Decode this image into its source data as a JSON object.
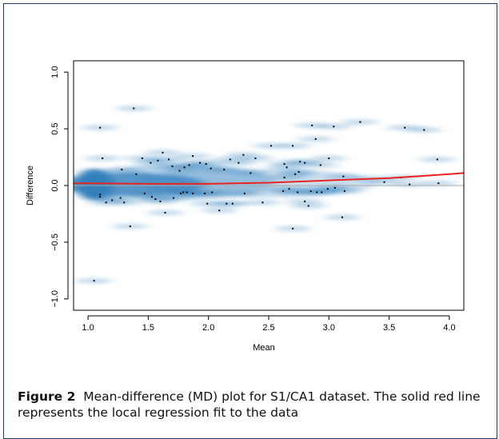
{
  "chart_data": {
    "type": "scatter",
    "title": "",
    "xlabel": "Mean",
    "ylabel": "Difference",
    "xlim": [
      0.88,
      4.12
    ],
    "ylim": [
      -1.1,
      1.1
    ],
    "x_ticks": [
      "1.0",
      "1.5",
      "2.0",
      "2.5",
      "3.0",
      "3.5",
      "4.0"
    ],
    "y_ticks": [
      "-1.0",
      "-0.5",
      "0.0",
      "0.5",
      "1.0"
    ],
    "smooth_scatter_density": true,
    "reference_line_y": 0.0,
    "points": [
      [
        1.1,
        0.51
      ],
      [
        1.38,
        0.68
      ],
      [
        1.05,
        -0.84
      ],
      [
        1.12,
        0.24
      ],
      [
        1.28,
        0.14
      ],
      [
        1.35,
        -0.36
      ],
      [
        1.4,
        0.1
      ],
      [
        1.45,
        0.24
      ],
      [
        1.52,
        0.2
      ],
      [
        1.58,
        0.22
      ],
      [
        1.62,
        0.29
      ],
      [
        1.67,
        0.23
      ],
      [
        1.7,
        0.17
      ],
      [
        1.76,
        0.13
      ],
      [
        1.8,
        0.16
      ],
      [
        1.84,
        0.18
      ],
      [
        1.87,
        0.26
      ],
      [
        1.93,
        0.2
      ],
      [
        1.98,
        0.19
      ],
      [
        2.02,
        0.15
      ],
      [
        2.13,
        0.14
      ],
      [
        2.18,
        0.23
      ],
      [
        2.25,
        0.2
      ],
      [
        2.29,
        0.27
      ],
      [
        2.35,
        0.11
      ],
      [
        2.39,
        0.24
      ],
      [
        2.52,
        0.35
      ],
      [
        2.63,
        0.07
      ],
      [
        2.7,
        0.35
      ],
      [
        2.76,
        0.21
      ],
      [
        2.8,
        0.2
      ],
      [
        2.86,
        0.53
      ],
      [
        2.89,
        0.41
      ],
      [
        2.93,
        0.18
      ],
      [
        3.04,
        0.52
      ],
      [
        3.26,
        0.56
      ],
      [
        3.63,
        0.51
      ],
      [
        3.79,
        0.49
      ],
      [
        3.9,
        0.23
      ],
      [
        3.0,
        0.24
      ],
      [
        2.63,
        0.19
      ],
      [
        2.65,
        0.16
      ],
      [
        2.75,
        0.12
      ],
      [
        2.72,
        0.1
      ],
      [
        3.12,
        0.08
      ],
      [
        3.35,
        0.06
      ],
      [
        3.46,
        0.03
      ],
      [
        3.6,
        0.07
      ],
      [
        3.67,
        0.01
      ],
      [
        1.1,
        -0.08
      ],
      [
        1.1,
        -0.1
      ],
      [
        1.15,
        -0.15
      ],
      [
        1.2,
        -0.13
      ],
      [
        1.27,
        -0.11
      ],
      [
        1.3,
        -0.15
      ],
      [
        1.47,
        -0.07
      ],
      [
        1.53,
        -0.1
      ],
      [
        1.56,
        -0.12
      ],
      [
        1.6,
        -0.14
      ],
      [
        1.64,
        -0.24
      ],
      [
        1.71,
        -0.11
      ],
      [
        1.77,
        -0.07
      ],
      [
        1.79,
        -0.06
      ],
      [
        1.82,
        -0.06
      ],
      [
        1.87,
        -0.07
      ],
      [
        1.97,
        -0.07
      ],
      [
        1.99,
        -0.16
      ],
      [
        2.03,
        -0.06
      ],
      [
        2.09,
        -0.22
      ],
      [
        2.15,
        -0.16
      ],
      [
        2.2,
        -0.16
      ],
      [
        2.3,
        -0.07
      ],
      [
        2.45,
        -0.15
      ],
      [
        2.62,
        -0.05
      ],
      [
        2.67,
        -0.03
      ],
      [
        2.7,
        -0.38
      ],
      [
        2.74,
        -0.06
      ],
      [
        2.8,
        -0.14
      ],
      [
        2.83,
        -0.18
      ],
      [
        2.85,
        -0.05
      ],
      [
        2.9,
        -0.06
      ],
      [
        2.94,
        -0.06
      ],
      [
        2.99,
        -0.03
      ],
      [
        3.05,
        -0.02
      ],
      [
        3.11,
        -0.28
      ],
      [
        3.13,
        -0.05
      ],
      [
        3.91,
        0.02
      ]
    ],
    "loess_fit": {
      "x": [
        0.88,
        1.0,
        1.5,
        2.0,
        2.5,
        3.0,
        3.5,
        4.0,
        4.12
      ],
      "y": [
        0.02,
        0.02,
        0.015,
        0.015,
        0.025,
        0.045,
        0.065,
        0.1,
        0.11
      ]
    },
    "colors": {
      "fit_line": "#e8251f",
      "density": "#2f7dbb",
      "points": "#000000",
      "reference_line": "#aaaaaa"
    }
  },
  "caption": {
    "label": "Figure 2",
    "text": "Mean-difference (MD) plot for S1/CA1 dataset. The solid red line represents the local regression fit to the data"
  }
}
